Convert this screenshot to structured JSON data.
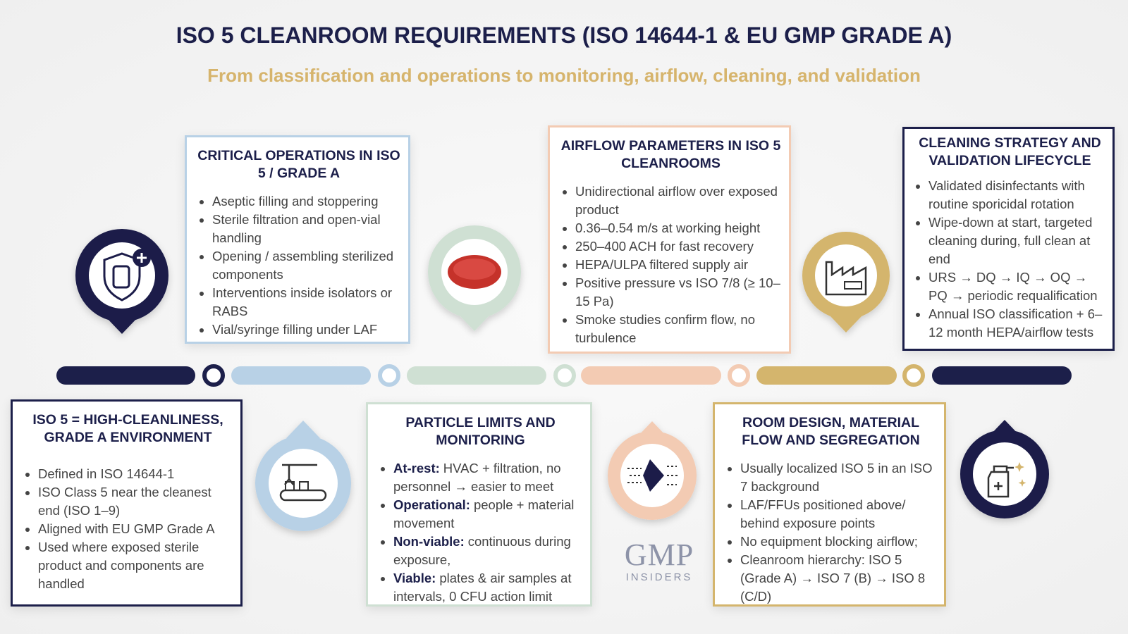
{
  "header": {
    "title": "ISO 5 CLEANROOM REQUIREMENTS (ISO 14644-1 & EU GMP GRADE A)",
    "subtitle": "From classification and operations to monitoring, airflow, cleaning, and validation"
  },
  "cards": [
    {
      "title": "CRITICAL OPERATIONS IN ISO 5 / GRADE A",
      "items": [
        "Aseptic filling and stoppering",
        "Sterile filtration and open-vial handling",
        "Opening / assembling sterilized components",
        "Interventions inside isolators or RABS",
        "Vial/syringe filling under LAF"
      ]
    },
    {
      "title": "AIRFLOW PARAMETERS IN ISO 5 CLEANROOMS",
      "items": [
        "Unidirectional airflow over exposed product",
        "0.36–0.54 m/s at working height",
        "250–400 ACH for fast recovery",
        "HEPA/ULPA filtered supply air",
        "Positive pressure vs ISO 7/8 (≥ 10–15 Pa)",
        "Smoke studies confirm flow, no turbulence"
      ]
    },
    {
      "title": "CLEANING STRATEGY AND VALIDATION LIFECYCLE",
      "items": [
        "Validated disinfectants with routine sporicidal rotation",
        "Wipe-down at start, targeted cleaning during, full clean at end",
        "URS → DQ → IQ → OQ → PQ → periodic requalification",
        "Annual ISO classification + 6–12 month HEPA/airflow tests"
      ]
    },
    {
      "title": "ISO 5 = HIGH-CLEANLINESS, GRADE A ENVIRONMENT",
      "items": [
        "Defined in ISO 14644-1",
        "ISO Class 5 near the cleanest end (ISO 1–9)",
        "Aligned with EU GMP Grade A",
        "Used where exposed sterile product and components are handled"
      ]
    },
    {
      "title": "PARTICLE LIMITS AND MONITORING",
      "items": [
        {
          "lead": "At-rest:",
          "text": "HVAC + filtration, no personnel → easier to meet"
        },
        {
          "lead": "Operational:",
          "text": "people + material movement"
        },
        {
          "lead": "Non-viable:",
          "text": "continuous during exposure,"
        },
        {
          "lead": "Viable:",
          "text": "plates & air samples at intervals, 0 CFU action limit"
        }
      ]
    },
    {
      "title": "ROOM DESIGN, MATERIAL FLOW AND SEGREGATION",
      "items": [
        "Usually localized ISO 5 in an ISO 7 background",
        "LAF/FFUs positioned above/ behind exposure points",
        "No equipment blocking airflow;",
        "Cleanroom hierarchy: ISO 5 (Grade A) → ISO 7 (B) → ISO 8 (C/D)"
      ]
    }
  ],
  "logo": {
    "name": "GMP",
    "tagline": "INSIDERS"
  }
}
